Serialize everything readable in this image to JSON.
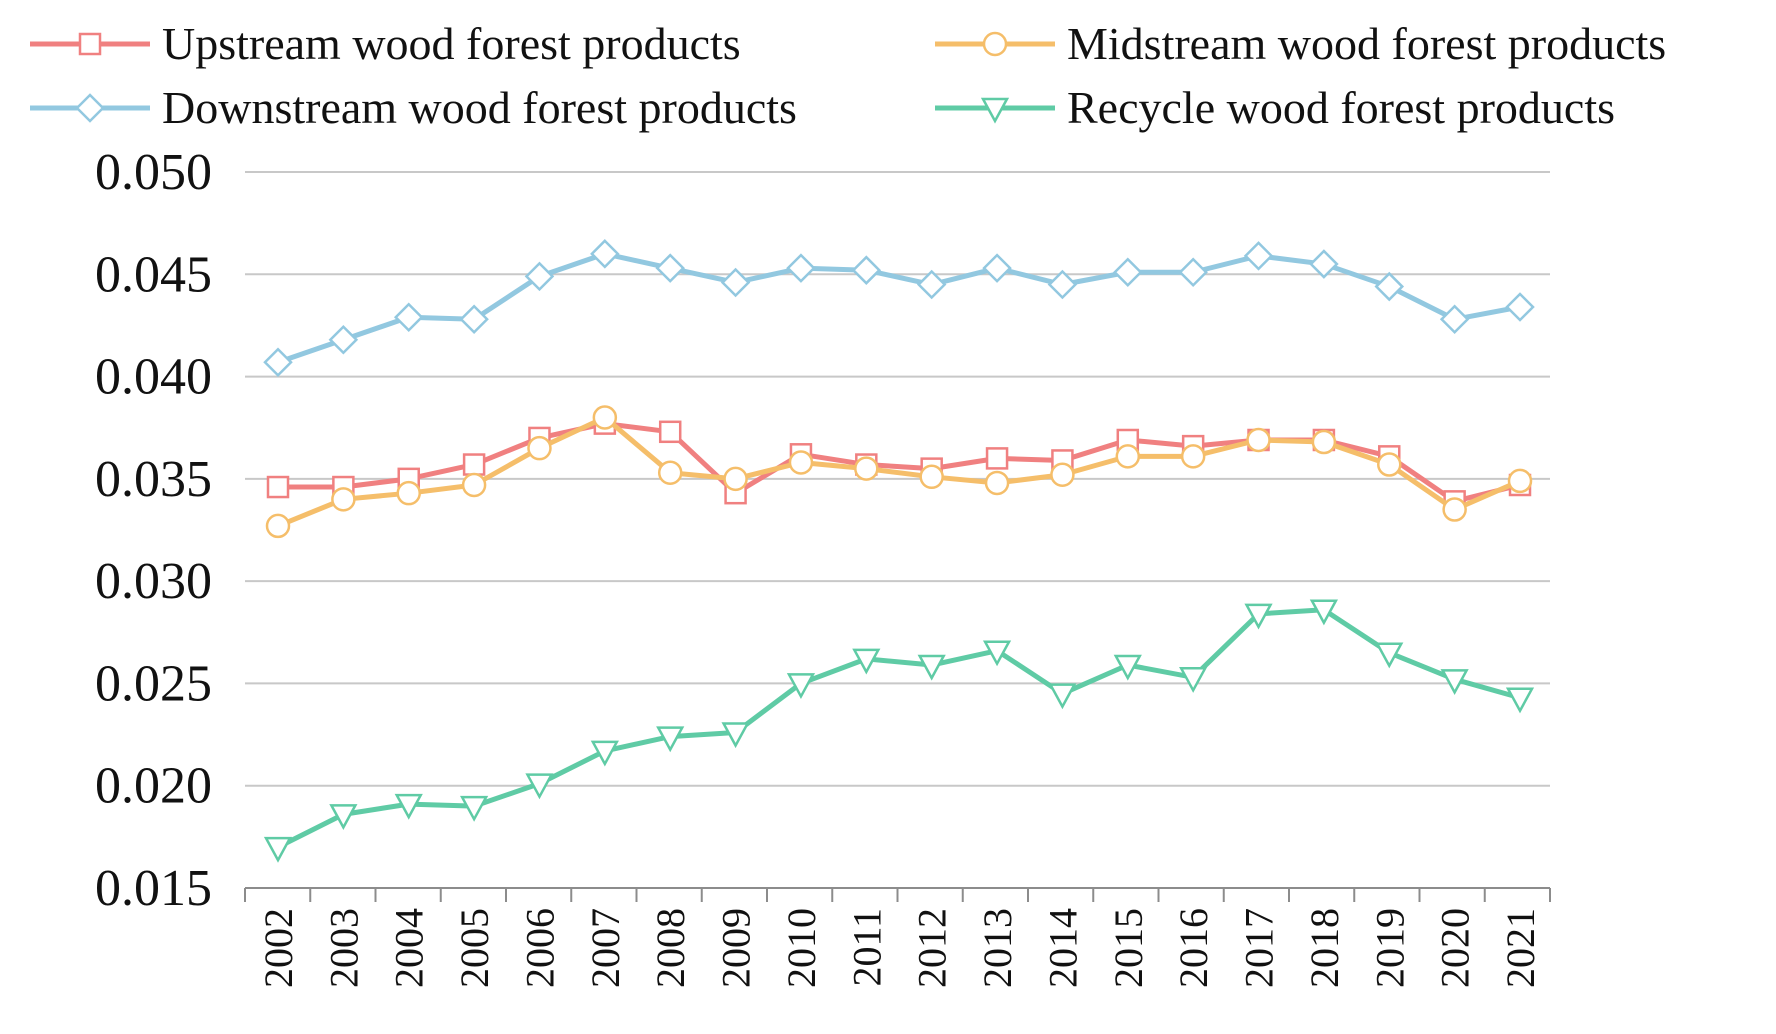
{
  "chart_data": {
    "type": "line",
    "title": "",
    "xlabel": "",
    "ylabel": "",
    "ylim": [
      0.015,
      0.05
    ],
    "y_ticks": [
      "0.015",
      "0.020",
      "0.025",
      "0.030",
      "0.035",
      "0.040",
      "0.045",
      "0.050"
    ],
    "y_tick_values": [
      0.015,
      0.02,
      0.025,
      0.03,
      0.035,
      0.04,
      0.045,
      0.05
    ],
    "grid": true,
    "legend_position": "top",
    "categories": [
      "2002",
      "2003",
      "2004",
      "2005",
      "2006",
      "2007",
      "2008",
      "2009",
      "2010",
      "2011",
      "2012",
      "2013",
      "2014",
      "2015",
      "2016",
      "2017",
      "2018",
      "2019",
      "2020",
      "2021"
    ],
    "series": [
      {
        "name": "Upstream wood forest products",
        "color": "#F08080",
        "marker": "square",
        "values": [
          0.0346,
          0.0346,
          0.035,
          0.0357,
          0.037,
          0.0377,
          0.0373,
          0.0343,
          0.0362,
          0.0357,
          0.0355,
          0.036,
          0.0359,
          0.0369,
          0.0366,
          0.0369,
          0.0369,
          0.0361,
          0.0339,
          0.0347
        ]
      },
      {
        "name": "Midstream wood forest products",
        "color": "#F5BE6A",
        "marker": "circle",
        "values": [
          0.0327,
          0.034,
          0.0343,
          0.0347,
          0.0365,
          0.038,
          0.0353,
          0.035,
          0.0358,
          0.0355,
          0.0351,
          0.0348,
          0.0352,
          0.0361,
          0.0361,
          0.0369,
          0.0368,
          0.0357,
          0.0335,
          0.0349
        ]
      },
      {
        "name": "Downstream wood forest products",
        "color": "#92C8E0",
        "marker": "diamond",
        "values": [
          0.0407,
          0.0418,
          0.0429,
          0.0428,
          0.0449,
          0.046,
          0.0453,
          0.0446,
          0.0453,
          0.0452,
          0.0445,
          0.0453,
          0.0445,
          0.0451,
          0.0451,
          0.0459,
          0.0455,
          0.0444,
          0.0428,
          0.0434
        ]
      },
      {
        "name": "Recycle wood forest products",
        "color": "#5FCBA5",
        "marker": "triangle-down",
        "values": [
          0.017,
          0.0186,
          0.0191,
          0.019,
          0.0201,
          0.0217,
          0.0224,
          0.0226,
          0.025,
          0.0262,
          0.0259,
          0.0266,
          0.0245,
          0.0259,
          0.0253,
          0.0284,
          0.0286,
          0.0265,
          0.0252,
          0.0243
        ]
      }
    ]
  }
}
